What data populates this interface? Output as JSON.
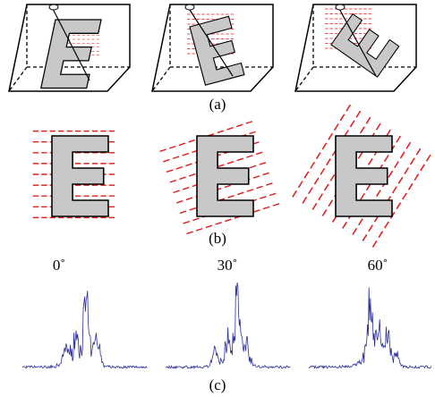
{
  "panels": {
    "a": "(a)",
    "b": "(b)",
    "c": "(c)"
  },
  "angles": [
    "0˚",
    "30˚",
    "60˚"
  ]
}
